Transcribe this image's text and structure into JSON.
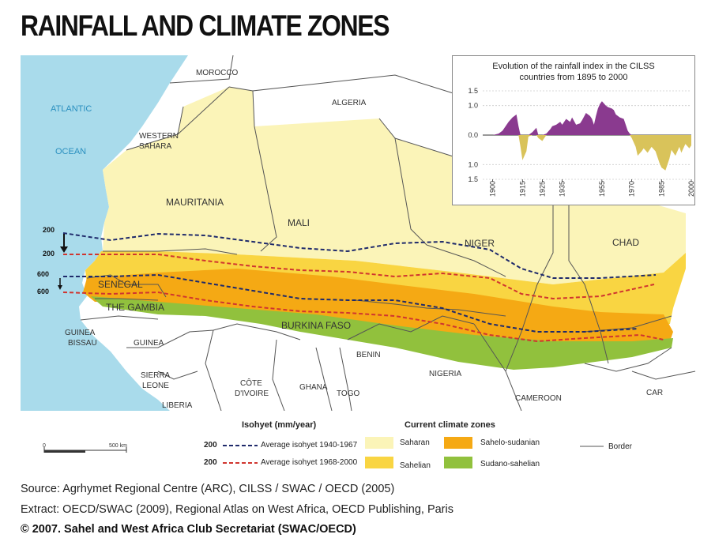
{
  "title": "RAINFALL AND CLIMATE ZONES",
  "map": {
    "sea_labels": [
      "ATLANTIC",
      "OCEAN"
    ],
    "countries": {
      "morocco": "MOROCCO",
      "algeria": "ALGERIA",
      "western_sahara": [
        "WESTERN",
        "SAHARA"
      ],
      "mauritania": "MAURITANIA",
      "mali": "MALI",
      "niger": "NIGER",
      "chad": "CHAD",
      "senegal": "SENEGAL",
      "the_gambia": "THE GAMBIA",
      "burkina_faso": "BURKINA FASO",
      "guinea_bissau": [
        "GUINEA",
        "BISSAU"
      ],
      "guinea": "GUINEA",
      "sierra_leone": [
        "SIERRA",
        "LEONE"
      ],
      "liberia": "LIBERIA",
      "cote_divoire": [
        "CÔTE",
        "D'IVOIRE"
      ],
      "ghana": "GHANA",
      "togo": "TOGO",
      "benin": "BENIN",
      "nigeria": "NIGERIA",
      "cameroon": "CAMEROON",
      "car": "CAR"
    },
    "isohyet_labels": [
      "200",
      "200",
      "600",
      "600"
    ],
    "colors": {
      "sea": "#a9dbeb",
      "land": "#ffffff",
      "saharan": "#fbf4b8",
      "sahelian": "#f9d542",
      "sahelo_sudanian": "#f5a914",
      "sudano_sahelian": "#91c13d",
      "isohyet_1940_1967": "#1f2a6b",
      "isohyet_1968_2000": "#d0352f",
      "border": "#555555"
    }
  },
  "inset": {
    "title_line1": "Evolution of the rainfall index in the CILSS",
    "title_line2": "countries from 1895 to 2000",
    "y_ticks": [
      "1.5",
      "1.0",
      "0.0",
      "1.0",
      "1.5"
    ],
    "x_ticks": [
      "1900",
      "1915",
      "1925",
      "1935",
      "1955",
      "1970",
      "1985",
      "2000"
    ],
    "positive_color": "#8a3a8f",
    "negative_color": "#d9c35a"
  },
  "chart_data": {
    "type": "area",
    "title": "Evolution of the rainfall index in the CILSS countries from 1895 to 2000",
    "x": [
      1895,
      1900,
      1903,
      1905,
      1908,
      1910,
      1912,
      1913,
      1914,
      1915,
      1917,
      1918,
      1920,
      1922,
      1923,
      1925,
      1927,
      1929,
      1930,
      1932,
      1934,
      1935,
      1937,
      1939,
      1940,
      1942,
      1944,
      1945,
      1947,
      1949,
      1950,
      1951,
      1952,
      1953,
      1954,
      1955,
      1957,
      1958,
      1960,
      1961,
      1962,
      1964,
      1966,
      1967,
      1968,
      1969,
      1970,
      1972,
      1973,
      1975,
      1976,
      1978,
      1980,
      1982,
      1984,
      1985,
      1987,
      1989,
      1990,
      1992,
      1994,
      1995,
      1997,
      1999,
      2000
    ],
    "values": [
      0.0,
      0.0,
      0.05,
      0.15,
      0.45,
      0.6,
      0.7,
      0.3,
      -0.4,
      -0.85,
      -0.55,
      -0.05,
      0.1,
      0.25,
      -0.1,
      -0.2,
      0.05,
      0.2,
      0.3,
      0.35,
      0.45,
      0.35,
      0.55,
      0.45,
      0.6,
      0.35,
      0.4,
      0.5,
      0.75,
      0.65,
      0.55,
      0.35,
      0.65,
      0.9,
      1.05,
      1.15,
      1.0,
      0.95,
      0.9,
      0.85,
      0.7,
      0.6,
      0.55,
      0.35,
      0.15,
      0.05,
      -0.1,
      -0.4,
      -0.7,
      -0.55,
      -0.45,
      -0.6,
      -0.4,
      -0.55,
      -0.95,
      -1.1,
      -1.2,
      -0.8,
      -0.5,
      -0.7,
      -0.4,
      -0.6,
      -0.3,
      -0.45,
      -0.35
    ],
    "ylim": [
      -1.5,
      1.5
    ],
    "xlim": [
      1895,
      2000
    ]
  },
  "legend": {
    "isohyet_title": "Isohyet (mm/year)",
    "isohyet_1_value": "200",
    "isohyet_1_label": "Average isohyet 1940-1967",
    "isohyet_2_value": "200",
    "isohyet_2_label": "Average isohyet 1968-2000",
    "zones_title": "Current climate zones",
    "zone_saharan": "Saharan",
    "zone_sahelian": "Sahelian",
    "zone_sahelo_sudanian": "Sahelo-sudanian",
    "zone_sudano_sahelian": "Sudano-sahelian",
    "border_label": "Border",
    "scale_start": "0",
    "scale_end": "500 km"
  },
  "source": {
    "line1": "Source: Agrhymet Regional Centre (ARC), CILSS / SWAC / OECD (2005)",
    "line2": "Extract: OECD/SWAC (2009), Regional Atlas on West Africa, OECD Publishing, Paris",
    "copyright": "© 2007. Sahel and West Africa Club Secretariat (SWAC/OECD)"
  }
}
